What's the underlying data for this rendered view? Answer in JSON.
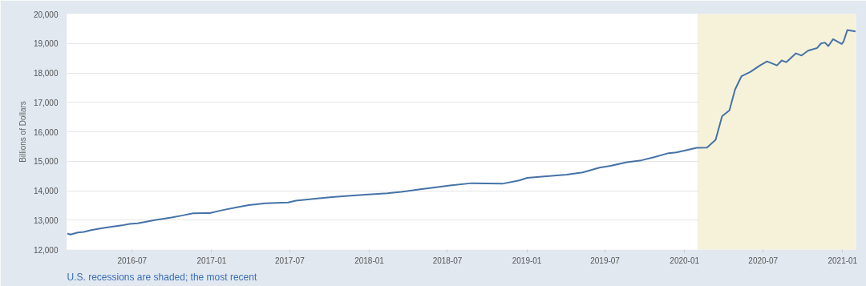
{
  "chart_data": {
    "type": "line",
    "ylabel": "Billions of Dollars",
    "annotations": [
      "U.S. recessions are shaded; the most recent"
    ],
    "xlim": [
      "2016-02-01",
      "2021-02-01"
    ],
    "xticks": [
      {
        "value": "2016-07-01",
        "label": "2016-07"
      },
      {
        "value": "2017-01-01",
        "label": "2017-01"
      },
      {
        "value": "2017-07-01",
        "label": "2017-07"
      },
      {
        "value": "2018-01-01",
        "label": "2018-01"
      },
      {
        "value": "2018-07-01",
        "label": "2018-07"
      },
      {
        "value": "2019-01-01",
        "label": "2019-01"
      },
      {
        "value": "2019-07-01",
        "label": "2019-07"
      },
      {
        "value": "2020-01-01",
        "label": "2020-01"
      },
      {
        "value": "2020-07-01",
        "label": "2020-07"
      },
      {
        "value": "2021-01-01",
        "label": "2021-01"
      }
    ],
    "ylim": [
      12000,
      20000
    ],
    "yticks": [
      {
        "value": 12000,
        "label": "12,000"
      },
      {
        "value": 13000,
        "label": "13,000"
      },
      {
        "value": 14000,
        "label": "14,000"
      },
      {
        "value": 15000,
        "label": "15,000"
      },
      {
        "value": 16000,
        "label": "16,000"
      },
      {
        "value": 17000,
        "label": "17,000"
      },
      {
        "value": 18000,
        "label": "18,000"
      },
      {
        "value": 19000,
        "label": "19,000"
      },
      {
        "value": 20000,
        "label": "20,000"
      }
    ],
    "grid": "y",
    "marker": "none",
    "line_style": "solid",
    "bands": [
      {
        "axis": "x",
        "from": "2020-02-01",
        "to": "2021-02-01",
        "color": "#f5f2d9"
      }
    ],
    "series": [
      {
        "color": "#4572a7",
        "x": [
          "2016-02-02",
          "2016-02-09",
          "2016-02-26",
          "2016-03-11",
          "2016-03-28",
          "2016-04-23",
          "2016-05-12",
          "2016-06-07",
          "2016-06-25",
          "2016-07-14",
          "2016-08-22",
          "2016-09-30",
          "2016-10-26",
          "2016-11-19",
          "2016-12-28",
          "2017-01-23",
          "2017-03-03",
          "2017-03-28",
          "2017-05-06",
          "2017-06-27",
          "2017-07-15",
          "2017-08-29",
          "2017-10-07",
          "2017-11-26",
          "2017-12-30",
          "2018-02-12",
          "2018-03-16",
          "2018-04-29",
          "2018-05-29",
          "2018-07-07",
          "2018-08-26",
          "2018-11-05",
          "2018-12-14",
          "2019-01-02",
          "2019-02-10",
          "2019-04-03",
          "2019-05-10",
          "2019-06-18",
          "2019-07-14",
          "2019-08-20",
          "2019-09-23",
          "2019-10-24",
          "2019-11-25",
          "2019-12-13",
          "2020-01-03",
          "2020-01-29",
          "2020-02-22",
          "2020-03-13",
          "2020-03-28",
          "2020-04-14",
          "2020-04-27",
          "2020-05-12",
          "2020-06-01",
          "2020-06-24",
          "2020-07-10",
          "2020-08-02",
          "2020-08-13",
          "2020-08-24",
          "2020-09-15",
          "2020-09-28",
          "2020-10-13",
          "2020-11-03",
          "2020-11-12",
          "2020-11-21",
          "2020-11-29",
          "2020-12-10",
          "2020-12-30",
          "2021-01-03",
          "2021-01-12",
          "2021-01-31"
        ],
        "values": [
          12545,
          12510,
          12580,
          12600,
          12660,
          12730,
          12770,
          12820,
          12870,
          12890,
          13000,
          13090,
          13160,
          13230,
          13240,
          13330,
          13440,
          13510,
          13570,
          13600,
          13660,
          13730,
          13780,
          13840,
          13870,
          13910,
          13960,
          14045,
          14100,
          14180,
          14255,
          14235,
          14345,
          14435,
          14480,
          14545,
          14620,
          14780,
          14845,
          14965,
          15030,
          15145,
          15275,
          15300,
          15365,
          15455,
          15465,
          15730,
          16530,
          16730,
          17435,
          17890,
          18030,
          18255,
          18390,
          18255,
          18420,
          18365,
          18665,
          18590,
          18755,
          18845,
          19000,
          19030,
          18910,
          19145,
          18980,
          19055,
          19455,
          19410
        ]
      }
    ]
  }
}
